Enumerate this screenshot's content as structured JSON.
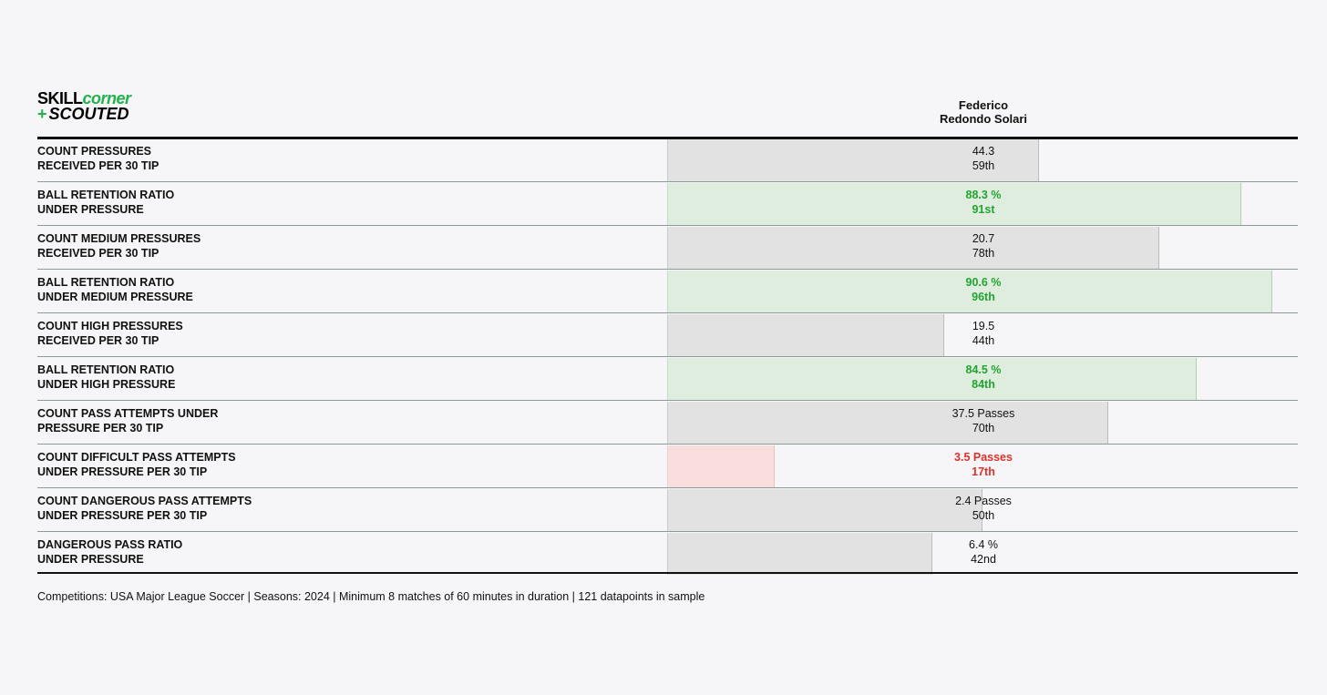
{
  "logo": {
    "part1_black": "SKILL",
    "part1_green": "corner",
    "plus": "+",
    "part2": "SCOUTED"
  },
  "colors": {
    "neutral_bar": "#e1e2e1",
    "good_bar": "#dfeddf",
    "bad_bar": "#f9dede",
    "good_text": "#22a52f",
    "bad_text": "#e0302a"
  },
  "chart_data": {
    "type": "bar",
    "player_name_line1": "Federico",
    "player_name_line2": "Redondo Solari",
    "orientation": "horizontal",
    "value_axis": "percentile",
    "xlim": [
      0,
      100
    ],
    "rows": [
      {
        "metric_line1": "COUNT PRESSURES",
        "metric_line2": "RECEIVED PER 30 TIP",
        "value_text": "44.3",
        "rank_text": "59th",
        "percentile": 59,
        "status": "neutral"
      },
      {
        "metric_line1": "BALL RETENTION RATIO",
        "metric_line2": "UNDER PRESSURE",
        "value_text": "88.3 %",
        "rank_text": "91st",
        "percentile": 91,
        "status": "good"
      },
      {
        "metric_line1": "COUNT MEDIUM PRESSURES",
        "metric_line2": "RECEIVED PER 30 TIP",
        "value_text": "20.7",
        "rank_text": "78th",
        "percentile": 78,
        "status": "neutral"
      },
      {
        "metric_line1": "BALL RETENTION RATIO",
        "metric_line2": "UNDER MEDIUM PRESSURE",
        "value_text": "90.6 %",
        "rank_text": "96th",
        "percentile": 96,
        "status": "good"
      },
      {
        "metric_line1": "COUNT HIGH PRESSURES",
        "metric_line2": "RECEIVED PER 30 TIP",
        "value_text": "19.5",
        "rank_text": "44th",
        "percentile": 44,
        "status": "neutral"
      },
      {
        "metric_line1": "BALL RETENTION RATIO",
        "metric_line2": "UNDER HIGH PRESSURE",
        "value_text": "84.5 %",
        "rank_text": "84th",
        "percentile": 84,
        "status": "good"
      },
      {
        "metric_line1": "COUNT PASS ATTEMPTS UNDER",
        "metric_line2": "PRESSURE PER 30 TIP",
        "value_text": "37.5 Passes",
        "rank_text": "70th",
        "percentile": 70,
        "status": "neutral"
      },
      {
        "metric_line1": "COUNT DIFFICULT PASS ATTEMPTS",
        "metric_line2": "UNDER PRESSURE PER 30 TIP",
        "value_text": "3.5 Passes",
        "rank_text": "17th",
        "percentile": 17,
        "status": "bad"
      },
      {
        "metric_line1": "COUNT DANGEROUS PASS ATTEMPTS",
        "metric_line2": "UNDER PRESSURE PER 30 TIP",
        "value_text": "2.4 Passes",
        "rank_text": "50th",
        "percentile": 50,
        "status": "neutral"
      },
      {
        "metric_line1": "DANGEROUS PASS RATIO",
        "metric_line2": "UNDER PRESSURE",
        "value_text": "6.4 %",
        "rank_text": "42nd",
        "percentile": 42,
        "status": "neutral"
      }
    ]
  },
  "footnote": "Competitions: USA Major League Soccer | Seasons: 2024 | Minimum 8 matches of 60 minutes in duration | 121 datapoints in sample"
}
